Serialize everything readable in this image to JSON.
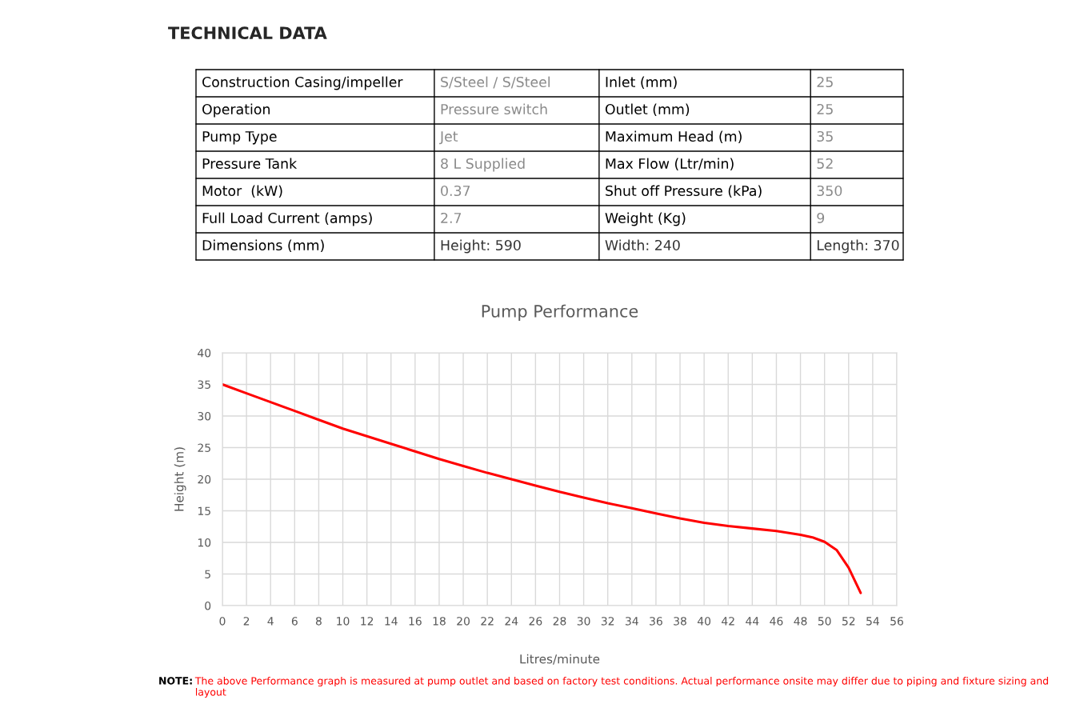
{
  "chart_data": [
    {
      "type": "other",
      "title": "TECHNICAL DATA",
      "annotations": [
        "Construction Casing/impeller",
        "S/Steel / S/Steel",
        "Inlet (mm)",
        "25",
        "Operation",
        "Pressure switch",
        "Outlet (mm)",
        "25",
        "Pump Type",
        "Jet",
        "Maximum Head (m)",
        "35",
        "Pressure Tank",
        "8 L Supplied",
        "Max Flow (Ltr/min)",
        "52",
        "Motor  (kW)",
        "0.37",
        "Shut off Pressure (kPa)",
        "350",
        "Full Load Current (amps)",
        "2.7",
        "Weight (Kg)",
        "9",
        "Dimensions (mm)",
        "Height: 590",
        "Width: 240",
        "Length: 370"
      ]
    },
    {
      "type": "line",
      "title": "Pump Performance",
      "xlabel": "Litres/minute",
      "ylabel": "Height (m)",
      "x": [
        0,
        2,
        4,
        6,
        8,
        10,
        12,
        14,
        16,
        18,
        20,
        22,
        24,
        26,
        28,
        30,
        32,
        34,
        36,
        38,
        40,
        42,
        44,
        46,
        48,
        49,
        50,
        51,
        52,
        53
      ],
      "series": [
        {
          "color": "#ff0000",
          "values": [
            35,
            33.6,
            32.2,
            30.8,
            29.4,
            28.0,
            26.8,
            25.6,
            24.4,
            23.2,
            22.1,
            21.0,
            20.0,
            19.0,
            18.0,
            17.1,
            16.2,
            15.4,
            14.6,
            13.8,
            13.1,
            12.6,
            12.2,
            11.8,
            11.2,
            10.8,
            10.1,
            8.8,
            6.0,
            2.0
          ]
        }
      ],
      "xlim": [
        0,
        56
      ],
      "xticks": [
        0,
        2,
        4,
        6,
        8,
        10,
        12,
        14,
        16,
        18,
        20,
        22,
        24,
        26,
        28,
        30,
        32,
        34,
        36,
        38,
        40,
        42,
        44,
        46,
        48,
        50,
        52,
        54,
        56
      ],
      "ylim": [
        0,
        40
      ],
      "yticks": [
        0,
        5,
        10,
        15,
        20,
        25,
        30,
        35,
        40
      ],
      "grid": true,
      "annotations": [
        "NOTE:",
        "The above Performance graph is measured at pump outlet and based on factory test conditions. Actual performance onsite may differ due to piping and fixture sizing and layout"
      ]
    }
  ]
}
